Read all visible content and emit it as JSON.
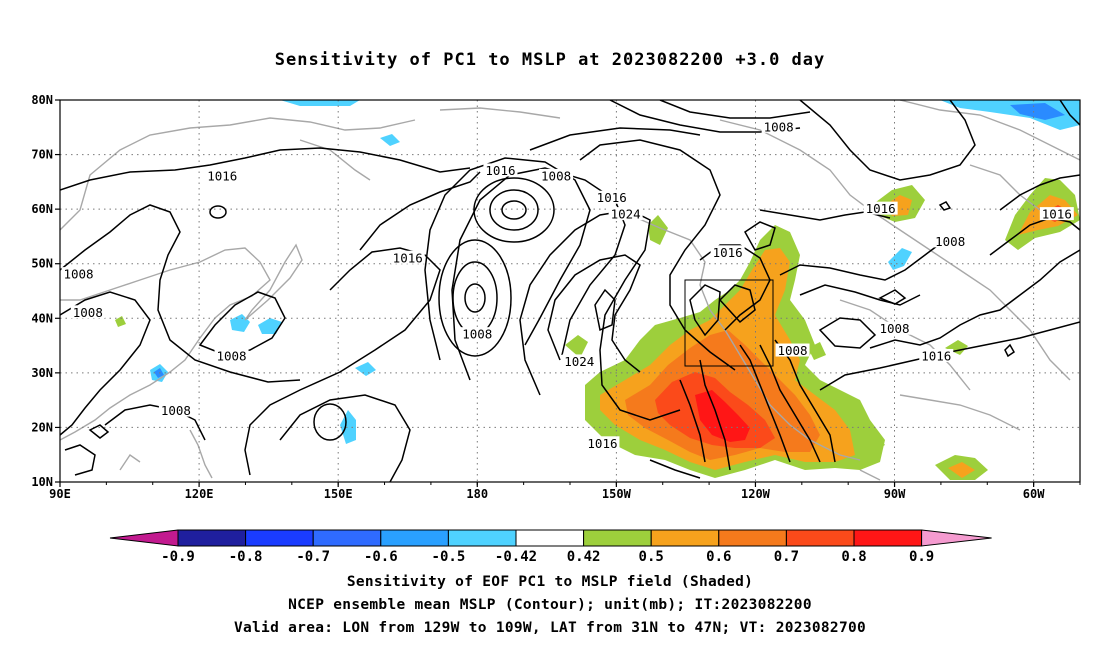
{
  "title": "Sensitivity of PC1 to MSLP at 2023082200 +3.0 day",
  "map": {
    "lat_ticks": [
      "80N",
      "70N",
      "60N",
      "50N",
      "40N",
      "30N",
      "20N",
      "10N"
    ],
    "lon_ticks": [
      "90E",
      "120E",
      "150E",
      "180",
      "150W",
      "120W",
      "90W",
      "60W"
    ],
    "lon_range": [
      90,
      310
    ],
    "lat_range": [
      10,
      80
    ],
    "grid": "dotted",
    "valid_box": {
      "lon_min": 231,
      "lon_max": 251,
      "lat_min": 31,
      "lat_max": 47
    },
    "contour_labels": [
      {
        "text": "1016",
        "lon": 125,
        "lat": 66
      },
      {
        "text": "1016",
        "lon": 165,
        "lat": 51
      },
      {
        "text": "1016",
        "lon": 185,
        "lat": 67
      },
      {
        "text": "1008",
        "lon": 197,
        "lat": 66
      },
      {
        "text": "1016",
        "lon": 209,
        "lat": 62
      },
      {
        "text": "1024",
        "lon": 212,
        "lat": 59
      },
      {
        "text": "1008",
        "lon": 94,
        "lat": 48
      },
      {
        "text": "1008",
        "lon": 96,
        "lat": 41
      },
      {
        "text": "1008",
        "lon": 127,
        "lat": 33
      },
      {
        "text": "1008",
        "lon": 115,
        "lat": 23
      },
      {
        "text": "1008",
        "lon": 180,
        "lat": 37
      },
      {
        "text": "1024",
        "lon": 202,
        "lat": 32
      },
      {
        "text": "1016",
        "lon": 207,
        "lat": 17
      },
      {
        "text": "1008",
        "lon": 245,
        "lat": 75
      },
      {
        "text": "1016",
        "lon": 234,
        "lat": 52
      },
      {
        "text": "1008",
        "lon": 248,
        "lat": 34
      },
      {
        "text": "1016",
        "lon": 267,
        "lat": 60
      },
      {
        "text": "1008",
        "lon": 282,
        "lat": 54
      },
      {
        "text": "1008",
        "lon": 270,
        "lat": 38
      },
      {
        "text": "1016",
        "lon": 279,
        "lat": 33
      },
      {
        "text": "1016",
        "lon": 305,
        "lat": 59
      }
    ]
  },
  "colorbar": {
    "labels": [
      "-0.9",
      "-0.8",
      "-0.7",
      "-0.6",
      "-0.5",
      "-0.42",
      "0.42",
      "0.5",
      "0.6",
      "0.7",
      "0.8",
      "0.9"
    ],
    "colors": [
      "#1f1f9e",
      "#1a3cff",
      "#2f6bff",
      "#2aa0ff",
      "#4fd2ff",
      "#ffffff",
      "#9dcf3c",
      "#f6a21d",
      "#f57a1c",
      "#fb4a1a",
      "#ff1616"
    ],
    "under_color": "#c21a8f",
    "over_color": "#f59bd0"
  },
  "captions": [
    "Sensitivity of EOF PC1 to MSLP field (Shaded)",
    "NCEP ensemble mean MSLP (Contour); unit(mb); IT:2023082200",
    "Valid area: LON from 129W to 109W, LAT from 31N to 47N; VT: 2023082700"
  ]
}
